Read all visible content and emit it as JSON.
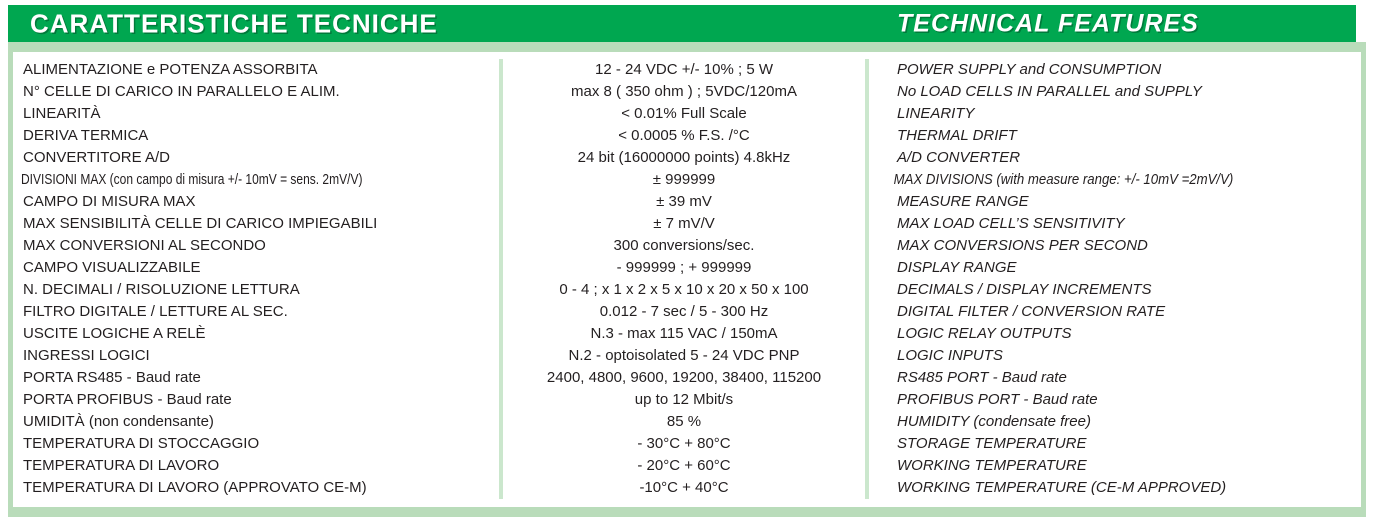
{
  "header": {
    "title_it": "CARATTERISTICHE TECNICHE",
    "title_en": "TECHNICAL FEATURES"
  },
  "colors": {
    "header_green": "#00a750",
    "light_green_border": "#b9dcba",
    "divider_green": "#cbe7cd",
    "text": "#231f20",
    "header_text": "#ffffff"
  },
  "rows": [
    {
      "it": "ALIMENTAZIONE e POTENZA ASSORBITA",
      "val": "12 - 24 VDC +/- 10% ;  5 W",
      "en": "POWER SUPPLY and CONSUMPTION"
    },
    {
      "it": "N° CELLE DI CARICO IN PARALLELO E ALIM.",
      "val": "max 8 ( 350 ohm ) ; 5VDC/120mA",
      "en": "No LOAD CELLS IN PARALLEL and SUPPLY"
    },
    {
      "it": "LINEARITÀ",
      "val": "< 0.01% Full Scale",
      "en": "LINEARITY"
    },
    {
      "it": "DERIVA TERMICA",
      "val": "< 0.0005 % F.S. /°C",
      "en": "THERMAL DRIFT"
    },
    {
      "it": "CONVERTITORE A/D",
      "val": "24 bit  (16000000 points) 4.8kHz",
      "en": "A/D CONVERTER"
    },
    {
      "it": "DIVISIONI MAX (con campo di misura +/- 10mV = sens. 2mV/V)",
      "val": "± 999999",
      "en": "MAX DIVISIONS (with measure range: +/- 10mV =2mV/V)"
    },
    {
      "it": "CAMPO DI MISURA MAX",
      "val": "± 39 mV",
      "en": "MEASURE RANGE"
    },
    {
      "it": "MAX SENSIBILITÀ CELLE DI CARICO IMPIEGABILI",
      "val": "± 7 mV/V",
      "en": "MAX LOAD CELL’S SENSITIVITY"
    },
    {
      "it": "MAX CONVERSIONI AL SECONDO",
      "val": "300 conversions/sec.",
      "en": "MAX CONVERSIONS PER SECOND"
    },
    {
      "it": "CAMPO VISUALIZZABILE",
      "val": "- 999999 ; + 999999",
      "en": "DISPLAY RANGE"
    },
    {
      "it": "N. DECIMALI / RISOLUZIONE LETTURA",
      "val": "0 - 4 ; x 1 x 2 x 5 x 10 x 20 x 50 x 100",
      "en": "DECIMALS / DISPLAY INCREMENTS"
    },
    {
      "it": "FILTRO DIGITALE / LETTURE AL SEC.",
      "val": "0.012 - 7 sec / 5 - 300 Hz",
      "en": "DIGITAL FILTER / CONVERSION RATE"
    },
    {
      "it": "USCITE LOGICHE A RELÈ",
      "val": "N.3 - max 115 VAC / 150mA",
      "en": "LOGIC RELAY OUTPUTS"
    },
    {
      "it": "INGRESSI LOGICI",
      "val": "N.2 - optoisolated 5 - 24 VDC PNP",
      "en": "LOGIC INPUTS"
    },
    {
      "it": "PORTA RS485 - Baud rate",
      "val": "2400, 4800, 9600, 19200, 38400, 115200",
      "en": "RS485 PORT - Baud rate"
    },
    {
      "it": "PORTA PROFIBUS - Baud rate",
      "val": "up to 12 Mbit/s",
      "en": "PROFIBUS PORT - Baud rate"
    },
    {
      "it": "UMIDITÀ (non condensante)",
      "val": "85 %",
      "en": "HUMIDITY (condensate free)"
    },
    {
      "it": "TEMPERATURA DI STOCCAGGIO",
      "val": "- 30°C + 80°C",
      "en": "STORAGE TEMPERATURE"
    },
    {
      "it": "TEMPERATURA DI LAVORO",
      "val": "- 20°C + 60°C",
      "en": "WORKING TEMPERATURE"
    },
    {
      "it": "TEMPERATURA DI LAVORO (APPROVATO CE-M)",
      "val": "-10°C + 40°C",
      "en": "WORKING TEMPERATURE (CE-M APPROVED)"
    }
  ]
}
